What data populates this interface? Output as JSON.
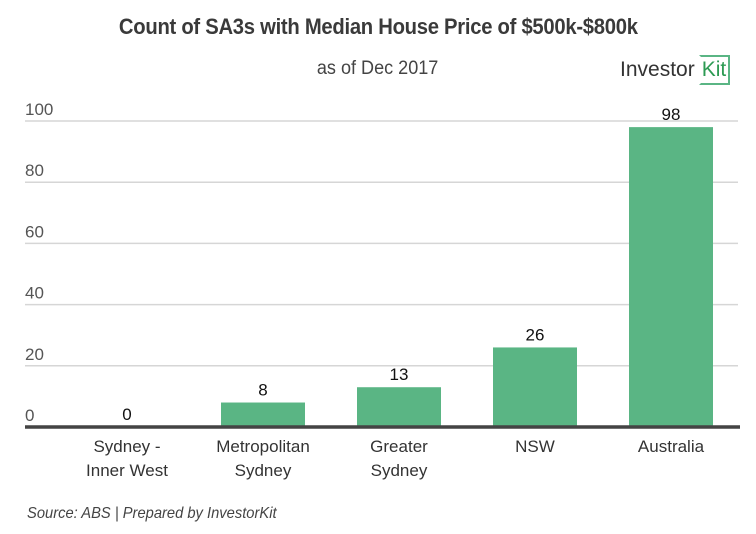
{
  "chart_data": {
    "type": "bar",
    "title": "Count of SA3s with Median House Price of $500k-$800k",
    "subtitle": "as of Dec 2017",
    "categories": [
      [
        "Sydney -",
        "Inner West"
      ],
      [
        "Metropolitan",
        "Sydney"
      ],
      [
        "Greater",
        "Sydney"
      ],
      [
        "NSW"
      ],
      [
        "Australia"
      ]
    ],
    "values": [
      0,
      8,
      13,
      26,
      98
    ],
    "data_labels": [
      "0",
      "8",
      "13",
      "26",
      "98"
    ],
    "yticks": [
      0,
      20,
      40,
      60,
      80,
      100
    ],
    "ylim": [
      0,
      100
    ],
    "xlabel": "",
    "ylabel": "",
    "grid": true,
    "legend": "none",
    "bar_color": "#5ab584"
  },
  "branding": {
    "word": "Investor",
    "kit": "Kit"
  },
  "footer": {
    "source": "Source: ABS | Prepared by InvestorKit"
  }
}
